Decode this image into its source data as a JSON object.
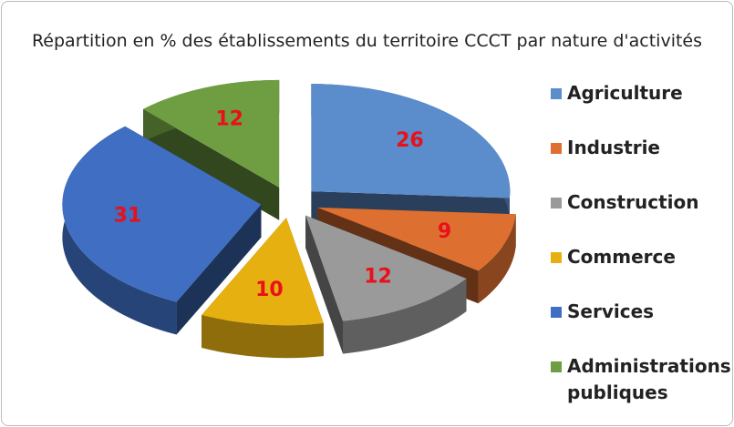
{
  "chart_data": {
    "type": "pie",
    "title": "Répartition en % des établissements du territoire CCCT par nature d'activités",
    "categories": [
      "Agriculture",
      "Industrie",
      "Construction",
      "Commerce",
      "Services",
      "Administrations publiques"
    ],
    "values": [
      26,
      9,
      12,
      10,
      31,
      12
    ],
    "colors": [
      "#5b8ccb",
      "#dd7030",
      "#9a9a9a",
      "#e6b010",
      "#3f6ec2",
      "#6f9e42"
    ]
  }
}
